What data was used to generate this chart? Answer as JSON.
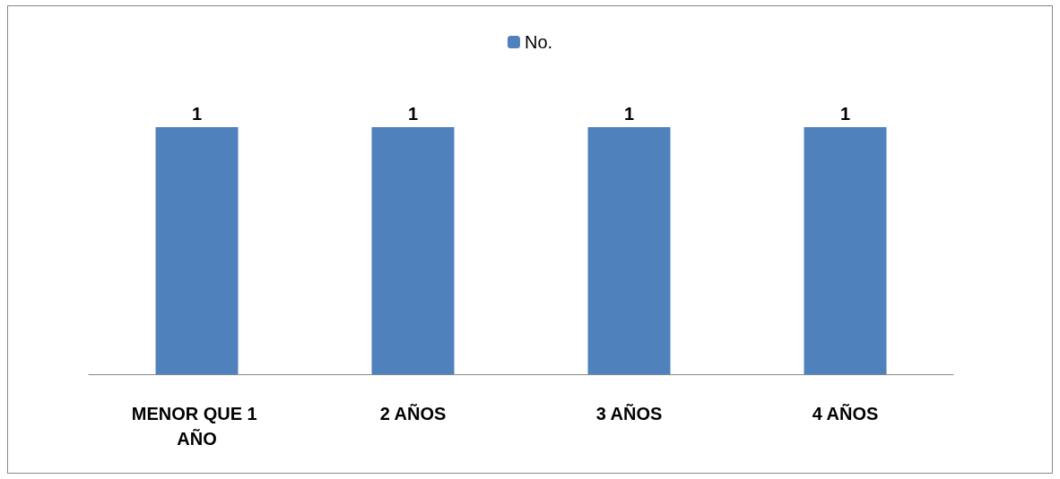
{
  "chart_data": {
    "type": "bar",
    "categories": [
      "MENOR QUE 1 AÑO",
      "2 AÑOS",
      "3 AÑOS",
      "4 AÑOS"
    ],
    "series": [
      {
        "name": "No.",
        "color": "#4f81bd",
        "values": [
          1,
          1,
          1,
          1
        ]
      }
    ],
    "data_labels": true,
    "legend": "top"
  }
}
